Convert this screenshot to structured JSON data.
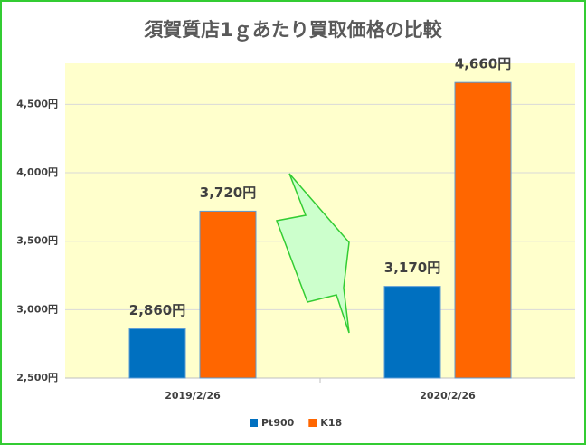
{
  "chart_data": {
    "type": "bar",
    "title": "須賀質店1ｇあたり買取価格の比較",
    "categories": [
      "2019/2/26",
      "2020/2/26"
    ],
    "series": [
      {
        "name": "Pt900",
        "color": "#0070c0",
        "values": [
          2860,
          3170
        ],
        "value_labels": [
          "2,860円",
          "3,170円"
        ]
      },
      {
        "name": "K18",
        "color": "#ff6600",
        "values": [
          3720,
          4660
        ],
        "value_labels": [
          "3,720円",
          "4,660円"
        ]
      }
    ],
    "ylim": [
      2500,
      4800
    ],
    "yticks": [
      {
        "value": 2500,
        "label": "2,500円"
      },
      {
        "value": 3000,
        "label": "3,000円"
      },
      {
        "value": 3500,
        "label": "3,500円"
      },
      {
        "value": 4000,
        "label": "4,000円"
      },
      {
        "value": 4500,
        "label": "4,500円"
      }
    ],
    "grid": true,
    "legend": "bottom"
  }
}
